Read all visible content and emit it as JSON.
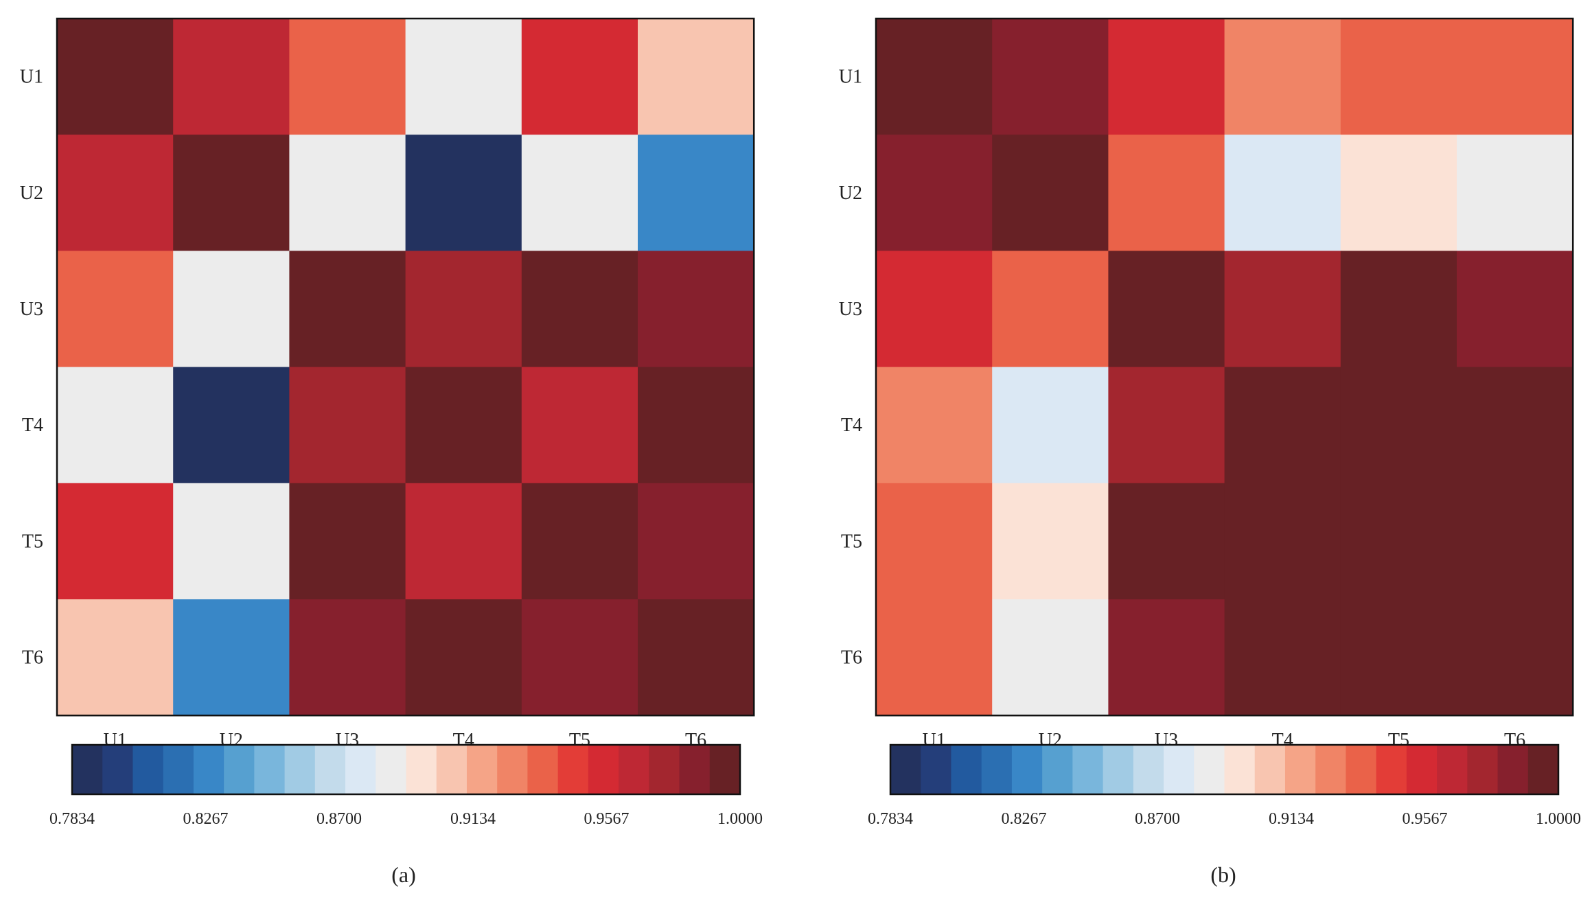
{
  "chart_data": [
    {
      "type": "heatmap",
      "caption": "(a)",
      "row_labels": [
        "U1",
        "U2",
        "U3",
        "T4",
        "T5",
        "T6"
      ],
      "col_labels": [
        "U1",
        "U2",
        "U3",
        "T4",
        "T5",
        "T6"
      ],
      "values": [
        [
          1.0,
          0.966,
          0.935,
          0.885,
          0.955,
          0.908
        ],
        [
          0.966,
          1.0,
          0.883,
          0.788,
          0.89,
          0.825
        ],
        [
          0.935,
          0.883,
          1.0,
          0.978,
          1.0,
          0.99
        ],
        [
          0.885,
          0.788,
          0.978,
          1.0,
          0.966,
          1.0
        ],
        [
          0.955,
          0.89,
          1.0,
          0.966,
          1.0,
          0.99
        ],
        [
          0.908,
          0.825,
          0.99,
          1.0,
          0.99,
          1.0
        ]
      ],
      "colorbar": {
        "min": 0.7834,
        "max": 1.0,
        "ticks": [
          "0.7834",
          "0.8267",
          "0.8700",
          "0.9134",
          "0.9567",
          "1.0000"
        ]
      }
    },
    {
      "type": "heatmap",
      "caption": "(b)",
      "row_labels": [
        "U1",
        "U2",
        "U3",
        "T4",
        "T5",
        "T6"
      ],
      "col_labels": [
        "U1",
        "U2",
        "U3",
        "T4",
        "T5",
        "T6"
      ],
      "values": [
        [
          1.0,
          0.99,
          0.959,
          0.928,
          0.94,
          0.933
        ],
        [
          0.99,
          1.0,
          0.933,
          0.88,
          0.9,
          0.89
        ],
        [
          0.959,
          0.933,
          1.0,
          0.978,
          1.0,
          0.99
        ],
        [
          0.928,
          0.88,
          0.978,
          1.0,
          1.0,
          1.0
        ],
        [
          0.94,
          0.9,
          1.0,
          1.0,
          1.0,
          1.0
        ],
        [
          0.933,
          0.89,
          0.99,
          1.0,
          1.0,
          1.0
        ]
      ],
      "colorbar": {
        "min": 0.7834,
        "max": 1.0,
        "ticks": [
          "0.7834",
          "0.8267",
          "0.8700",
          "0.9134",
          "0.9567",
          "1.0000"
        ]
      }
    }
  ],
  "colors": {
    "palette": [
      "#23325f",
      "#243e7a",
      "#225a9f",
      "#2b6fb2",
      "#3987c7",
      "#56a0d0",
      "#79b6dc",
      "#a1cbe4",
      "#c3dbeb",
      "#dbe8f4",
      "#ececec",
      "#fbe2d6",
      "#f8c5b0",
      "#f5a487",
      "#f08466",
      "#ea6249",
      "#e33d37",
      "#d42a33",
      "#be2834",
      "#a3262f",
      "#86202d",
      "#672125"
    ]
  }
}
